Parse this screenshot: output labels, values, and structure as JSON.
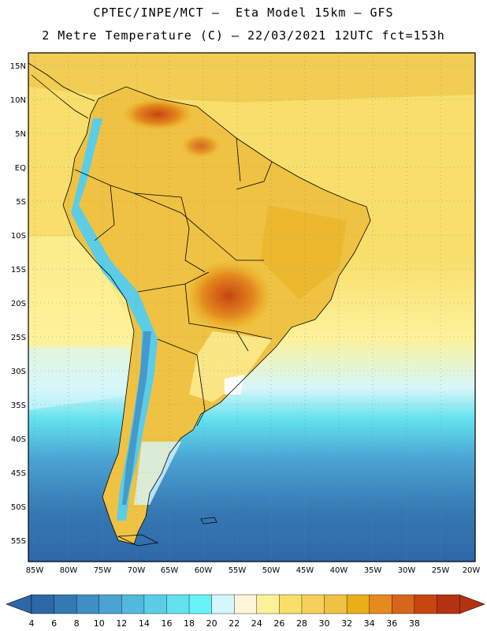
{
  "header": {
    "line1": "CPTEC/INPE/MCT –  Eta Model 15km – GFS",
    "line2": "2 Metre Temperature (C) – 22/03/2021 12UTC fct=153h"
  },
  "map": {
    "lat_labels": [
      "15N",
      "10N",
      "5N",
      "EQ",
      "5S",
      "10S",
      "15S",
      "20S",
      "25S",
      "30S",
      "35S",
      "40S",
      "45S",
      "50S",
      "55S"
    ],
    "lon_labels": [
      "85W",
      "80W",
      "75W",
      "70W",
      "65W",
      "60W",
      "55W",
      "50W",
      "45W",
      "40W",
      "35W",
      "30W",
      "25W",
      "20W"
    ],
    "lat_range": [
      17,
      -58
    ],
    "lon_range": [
      -86,
      -20
    ]
  },
  "colorbar": {
    "labels": [
      "4",
      "6",
      "8",
      "10",
      "12",
      "14",
      "16",
      "18",
      "20",
      "22",
      "24",
      "26",
      "28",
      "30",
      "32",
      "34",
      "36",
      "38"
    ],
    "colors": [
      "#2e67a8",
      "#3579b3",
      "#3f8ec4",
      "#4aa3d3",
      "#52b8de",
      "#5ccde6",
      "#62e2ee",
      "#66f4f8",
      "#d5f6fb",
      "#fff5d9",
      "#fdf29a",
      "#f8df6b",
      "#f5d05a",
      "#efc243",
      "#eaae18",
      "#e48a1e",
      "#d8651c",
      "#c64511",
      "#b53310"
    ],
    "low_color": "#2e67a8",
    "high_color": "#b53310"
  },
  "colors": {
    "ocean_cold": "#2e67a8",
    "ocean_mid": "#4aa3d3",
    "ocean_cyan": "#62e2ee",
    "ocean_warm": "#f8df6b",
    "land": "#efc243",
    "land_hot": "#d8651c",
    "andes": "#5ccde6"
  }
}
